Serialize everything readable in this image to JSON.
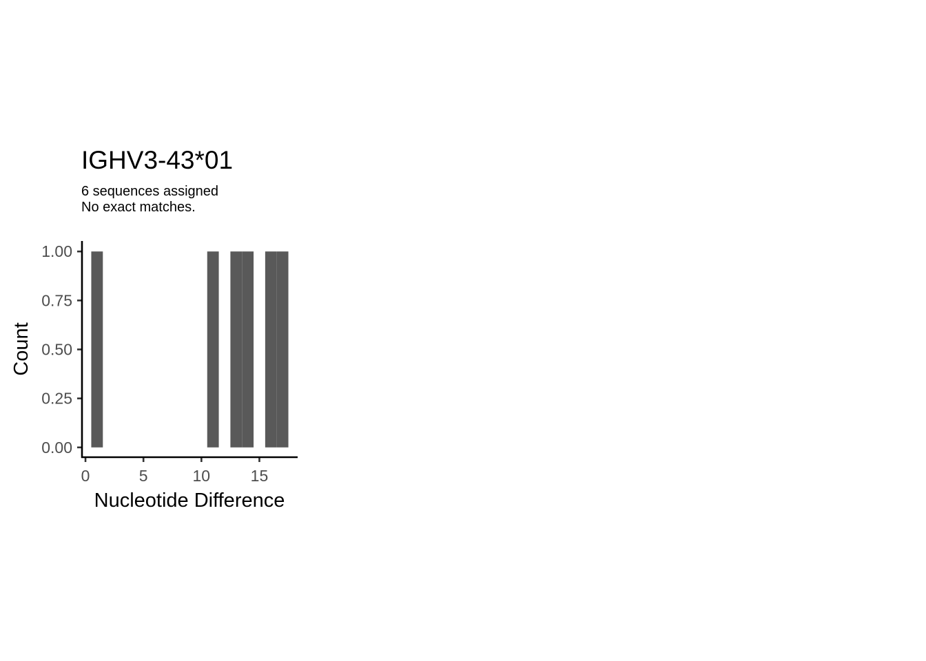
{
  "chart_data": {
    "type": "bar",
    "title": "IGHV3-43*01",
    "subtitle_lines": [
      "6 sequences assigned",
      "No exact matches."
    ],
    "xlabel": "Nucleotide Difference",
    "ylabel": "Count",
    "bar_width": 1,
    "x": [
      1,
      11,
      13,
      14,
      16,
      17
    ],
    "values": [
      1,
      1,
      1,
      1,
      1,
      1
    ],
    "xlim": [
      -0.3,
      18.3
    ],
    "ylim": [
      -0.05,
      1.05
    ],
    "x_ticks": [
      0,
      5,
      10,
      15
    ],
    "x_tick_labels": [
      "0",
      "5",
      "10",
      "15"
    ],
    "y_ticks": [
      0,
      0.25,
      0.5,
      0.75,
      1
    ],
    "y_tick_labels": [
      "0.00",
      "0.25",
      "0.50",
      "0.75",
      "1.00"
    ],
    "grid": false,
    "legend": "none",
    "bar_color": "#595959"
  }
}
